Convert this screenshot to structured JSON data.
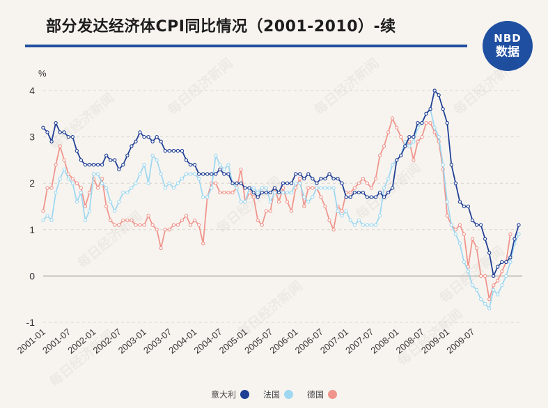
{
  "header": {
    "title": "部分发达经济体CPI同比情况（2001-2010）-续"
  },
  "logo": {
    "line1": "NBD",
    "line2": "数据"
  },
  "watermark": "每日经济新闻",
  "chart_data": {
    "type": "line",
    "title": "部分发达经济体CPI同比情况（2001-2010）-续",
    "ylabel": "%",
    "ylim": [
      -1,
      4
    ],
    "yticks": [
      -1,
      0,
      1,
      2,
      3,
      4
    ],
    "grid": "horizontal dashed",
    "legend_position": "bottom-center",
    "x_tick_labels": [
      "2001-01",
      "2001-07",
      "2002-01",
      "2002-07",
      "2003-01",
      "2003-07",
      "2004-01",
      "2004-07",
      "2005-01",
      "2005-07",
      "2006-01",
      "2006-07",
      "2007-01",
      "2007-07",
      "2008-01",
      "2008-07",
      "2009-01",
      "2009-07"
    ],
    "x_start": "2001-01",
    "x_frequency": "monthly",
    "series": [
      {
        "name": "意大利",
        "color": "#1f3f94",
        "values": [
          3.2,
          3.1,
          2.9,
          3.3,
          3.1,
          3.1,
          3.0,
          3.0,
          2.7,
          2.5,
          2.4,
          2.4,
          2.4,
          2.4,
          2.4,
          2.6,
          2.5,
          2.5,
          2.3,
          2.4,
          2.6,
          2.8,
          2.9,
          3.1,
          3.0,
          3.0,
          2.9,
          3.0,
          2.9,
          2.7,
          2.7,
          2.7,
          2.7,
          2.7,
          2.5,
          2.4,
          2.4,
          2.2,
          2.2,
          2.2,
          2.2,
          2.2,
          2.3,
          2.2,
          2.2,
          2.0,
          2.0,
          2.0,
          1.9,
          1.9,
          1.8,
          1.7,
          1.8,
          1.8,
          1.8,
          1.9,
          1.8,
          2.0,
          2.0,
          2.0,
          2.2,
          2.2,
          2.1,
          2.2,
          2.1,
          2.0,
          2.1,
          2.1,
          2.2,
          2.1,
          2.1,
          2.0,
          1.7,
          1.7,
          1.8,
          1.8,
          1.8,
          1.7,
          1.7,
          1.7,
          1.8,
          1.7,
          1.8,
          1.9,
          2.5,
          2.6,
          2.8,
          3.0,
          3.0,
          3.3,
          3.3,
          3.5,
          3.6,
          4.0,
          3.9,
          3.6,
          3.3,
          2.4,
          2.0,
          1.6,
          1.5,
          1.5,
          1.2,
          1.1,
          1.1,
          0.8,
          0.5,
          0.0,
          0.2,
          0.3,
          0.3,
          0.4,
          0.8,
          1.1
        ]
      },
      {
        "name": "法国",
        "color": "#9fd8f0",
        "values": [
          1.2,
          1.3,
          1.2,
          1.8,
          2.1,
          2.3,
          2.1,
          2.0,
          1.6,
          1.8,
          1.2,
          1.4,
          2.2,
          2.2,
          2.0,
          1.9,
          1.6,
          1.4,
          1.6,
          1.8,
          1.8,
          1.9,
          2.0,
          2.2,
          2.4,
          2.0,
          2.6,
          2.5,
          2.2,
          1.9,
          2.0,
          1.9,
          2.0,
          2.1,
          2.2,
          2.2,
          2.2,
          2.1,
          1.7,
          1.7,
          1.9,
          2.6,
          2.4,
          2.3,
          2.4,
          2.0,
          1.9,
          1.6,
          1.6,
          1.9,
          1.9,
          1.8,
          1.9,
          1.9,
          1.6,
          1.8,
          1.8,
          1.8,
          1.8,
          1.8,
          2.0,
          2.0,
          1.7,
          1.6,
          1.7,
          1.9,
          1.9,
          1.9,
          1.9,
          1.9,
          1.4,
          1.3,
          1.4,
          1.2,
          1.1,
          1.2,
          1.1,
          1.1,
          1.1,
          1.1,
          1.3,
          1.9,
          2.1,
          2.4,
          2.5,
          2.6,
          2.9,
          2.8,
          2.9,
          3.2,
          3.3,
          3.5,
          3.6,
          3.2,
          3.0,
          2.4,
          1.6,
          1.1,
          0.9,
          0.7,
          0.3,
          0.1,
          -0.2,
          -0.3,
          -0.5,
          -0.6,
          -0.7,
          -0.3,
          -0.4,
          -0.2,
          0.0,
          0.3,
          0.7,
          0.9
        ]
      },
      {
        "name": "德国",
        "color": "#f0958c",
        "values": [
          1.4,
          1.9,
          1.9,
          2.4,
          2.8,
          2.5,
          2.2,
          2.1,
          2.0,
          1.9,
          1.5,
          1.8,
          2.1,
          1.9,
          2.1,
          1.5,
          1.2,
          1.1,
          1.1,
          1.2,
          1.2,
          1.2,
          1.1,
          1.1,
          1.1,
          1.3,
          1.1,
          1.0,
          0.6,
          1.0,
          1.0,
          1.1,
          1.1,
          1.2,
          1.3,
          1.1,
          1.2,
          1.1,
          0.7,
          1.7,
          2.0,
          2.0,
          1.8,
          1.8,
          1.8,
          1.8,
          1.9,
          2.3,
          1.6,
          1.8,
          1.7,
          1.2,
          1.1,
          1.4,
          1.4,
          1.9,
          1.6,
          1.9,
          1.6,
          1.4,
          1.9,
          2.1,
          1.5,
          1.9,
          1.9,
          1.9,
          1.7,
          1.5,
          1.2,
          1.0,
          1.5,
          1.4,
          1.8,
          1.8,
          1.9,
          2.0,
          2.1,
          2.0,
          1.9,
          2.1,
          2.6,
          2.8,
          3.1,
          3.4,
          3.2,
          3.0,
          2.8,
          2.9,
          2.5,
          2.9,
          3.0,
          3.3,
          3.3,
          3.1,
          2.9,
          2.3,
          1.3,
          1.1,
          1.0,
          1.1,
          0.9,
          0.2,
          0.8,
          0.6,
          0.0,
          0.0,
          -0.5,
          -0.2,
          -0.1,
          0.1,
          0.3,
          0.9
        ]
      }
    ]
  }
}
